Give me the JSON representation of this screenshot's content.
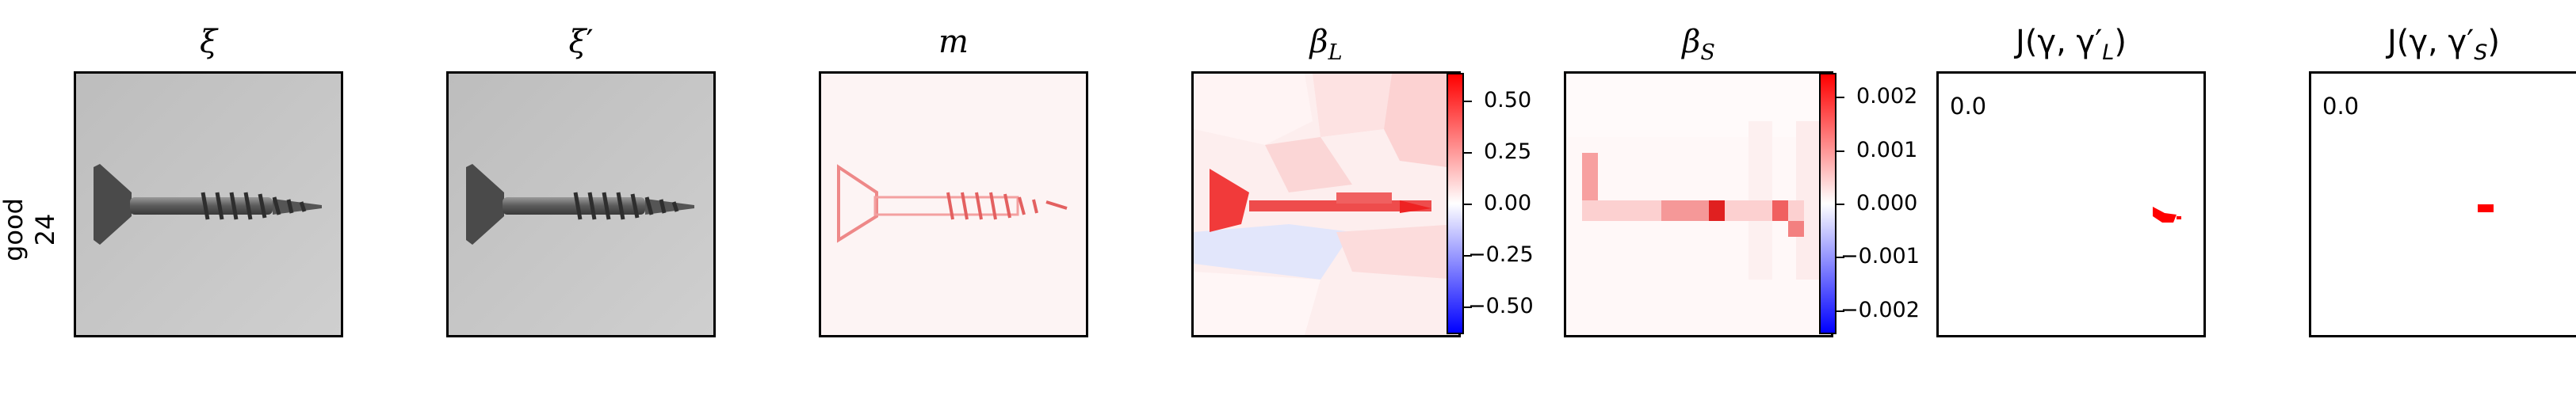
{
  "row_label": {
    "line1": "good",
    "line2": "24"
  },
  "panels": [
    {
      "id": "xi",
      "title": "ξ",
      "prime": ""
    },
    {
      "id": "xi_prime",
      "title": "ξ",
      "prime": "′"
    },
    {
      "id": "m",
      "title": "m"
    },
    {
      "id": "beta_L",
      "title": "β",
      "sub": "L"
    },
    {
      "id": "beta_S",
      "title": "β",
      "sub": "S"
    },
    {
      "id": "J_L",
      "title_pre": "J(γ, γ′",
      "sub": "L",
      "title_post": ")",
      "value": "0.0"
    },
    {
      "id": "J_S",
      "title_pre": "J(γ, γ′",
      "sub": "S",
      "title_post": ")",
      "value": "0.0"
    }
  ],
  "colorbar_L": {
    "ticks": [
      "0.50",
      "0.25",
      "0.00",
      "−0.25",
      "−0.50"
    ]
  },
  "colorbar_S": {
    "ticks": [
      "0.002",
      "0.001",
      "0.000",
      "−0.001",
      "−0.002"
    ]
  },
  "colors": {
    "positive": "#ff0000",
    "zero": "#ffffff",
    "negative": "#0000ff"
  }
}
